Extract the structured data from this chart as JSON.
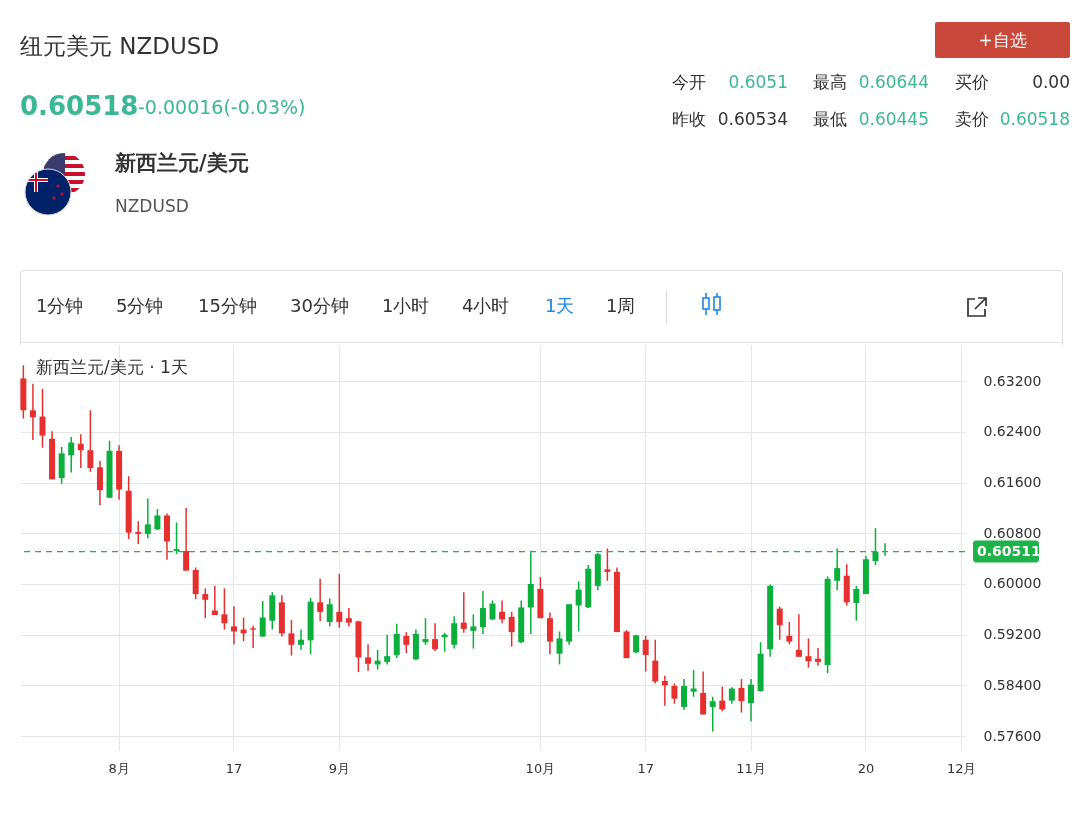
{
  "chart_data": {
    "type": "candlestick",
    "title": "新西兰元/美元 · 1天",
    "annotations": [
      "纽元美元 NZDUSD",
      "0.60518",
      "-0.00016(-0.03%)",
      "今开",
      "0.6051",
      "最高",
      "0.60644",
      "买价",
      "0.00",
      "昨收",
      "0.60534",
      "最低",
      "0.60445",
      "卖价",
      "0.60518",
      "+自选",
      "新西兰元/美元",
      "NZDUSD",
      "1分钟",
      "5分钟",
      "15分钟",
      "30分钟",
      "1小时",
      "4小时",
      "1天",
      "1周"
    ],
    "categories": [
      null,
      null,
      null,
      null,
      null,
      null,
      null,
      null,
      null,
      null,
      "8月",
      null,
      null,
      null,
      null,
      null,
      null,
      null,
      null,
      null,
      null,
      null,
      "17",
      null,
      null,
      null,
      null,
      null,
      null,
      null,
      null,
      null,
      null,
      "9月",
      null,
      null,
      null,
      null,
      null,
      null,
      null,
      null,
      null,
      null,
      null,
      null,
      null,
      null,
      null,
      null,
      null,
      null,
      null,
      null,
      "10月",
      null,
      null,
      null,
      null,
      null,
      null,
      null,
      null,
      null,
      null,
      "17",
      null,
      null,
      null,
      null,
      null,
      null,
      null,
      null,
      null,
      null,
      "11月",
      null,
      null,
      null,
      null,
      null,
      null,
      null,
      null,
      null,
      null,
      null,
      "20",
      null,
      null,
      null,
      null,
      null,
      null,
      null,
      null,
      null,
      "12月"
    ],
    "ohlc": [
      [
        0.6324,
        0.6345,
        0.6261,
        0.6274
      ],
      [
        0.6274,
        0.6316,
        0.6227,
        0.6263
      ],
      [
        0.6264,
        0.6308,
        0.6215,
        0.6234
      ],
      [
        0.6229,
        0.6241,
        0.6165,
        0.6165
      ],
      [
        0.6167,
        0.6216,
        0.6158,
        0.6206
      ],
      [
        0.6203,
        0.6232,
        0.6176,
        0.6223
      ],
      [
        0.6221,
        0.6236,
        0.6183,
        0.6211
      ],
      [
        0.6211,
        0.6274,
        0.6177,
        0.6183
      ],
      [
        0.6184,
        0.6194,
        0.6124,
        0.6148
      ],
      [
        0.6136,
        0.6226,
        0.6136,
        0.621
      ],
      [
        0.621,
        0.6219,
        0.6133,
        0.6149
      ],
      [
        0.6147,
        0.617,
        0.6071,
        0.6081
      ],
      [
        0.6082,
        0.6099,
        0.6063,
        0.6079
      ],
      [
        0.6079,
        0.6135,
        0.6072,
        0.6094
      ],
      [
        0.6086,
        0.6118,
        0.6085,
        0.6108
      ],
      [
        0.6108,
        0.6111,
        0.6038,
        0.6067
      ],
      [
        0.6052,
        0.6097,
        0.6047,
        0.6055
      ],
      [
        0.6052,
        0.612,
        0.6021,
        0.6021
      ],
      [
        0.6022,
        0.6026,
        0.5976,
        0.5984
      ],
      [
        0.5984,
        0.5993,
        0.5946,
        0.5975
      ],
      [
        0.5958,
        0.5997,
        0.5951,
        0.5951
      ],
      [
        0.5952,
        0.5993,
        0.5928,
        0.5938
      ],
      [
        0.5933,
        0.5965,
        0.5905,
        0.5925
      ],
      [
        0.5928,
        0.5947,
        0.591,
        0.5922
      ],
      [
        0.593,
        0.5934,
        0.5899,
        0.5928
      ],
      [
        0.5917,
        0.5973,
        0.5917,
        0.5947
      ],
      [
        0.5942,
        0.5987,
        0.5928,
        0.5982
      ],
      [
        0.5971,
        0.5982,
        0.5917,
        0.5922
      ],
      [
        0.5922,
        0.5943,
        0.5887,
        0.5904
      ],
      [
        0.5904,
        0.5928,
        0.5896,
        0.5912
      ],
      [
        0.5911,
        0.5978,
        0.5889,
        0.5972
      ],
      [
        0.5971,
        0.6008,
        0.5941,
        0.5956
      ],
      [
        0.594,
        0.5977,
        0.5933,
        0.5968
      ],
      [
        0.5956,
        0.6016,
        0.5931,
        0.594
      ],
      [
        0.5946,
        0.5962,
        0.5933,
        0.5939
      ],
      [
        0.5941,
        0.5942,
        0.5861,
        0.5884
      ],
      [
        0.5884,
        0.5905,
        0.5863,
        0.5874
      ],
      [
        0.5873,
        0.5896,
        0.5865,
        0.5879
      ],
      [
        0.5877,
        0.592,
        0.5873,
        0.5886
      ],
      [
        0.5888,
        0.5937,
        0.5883,
        0.5921
      ],
      [
        0.5918,
        0.5924,
        0.5891,
        0.5904
      ],
      [
        0.5881,
        0.5928,
        0.588,
        0.5921
      ],
      [
        0.5908,
        0.5946,
        0.5904,
        0.5913
      ],
      [
        0.5913,
        0.5938,
        0.5894,
        0.5897
      ],
      [
        0.5916,
        0.5923,
        0.5893,
        0.592
      ],
      [
        0.5904,
        0.5949,
        0.5898,
        0.5938
      ],
      [
        0.5939,
        0.5987,
        0.5923,
        0.5929
      ],
      [
        0.5926,
        0.5952,
        0.5898,
        0.5933
      ],
      [
        0.5932,
        0.5989,
        0.5921,
        0.5962
      ],
      [
        0.5944,
        0.5974,
        0.5943,
        0.5969
      ],
      [
        0.5956,
        0.5974,
        0.5938,
        0.5944
      ],
      [
        0.5948,
        0.5956,
        0.5901,
        0.5924
      ],
      [
        0.5908,
        0.5974,
        0.5907,
        0.5963
      ],
      [
        0.5963,
        0.605,
        0.5921,
        0.6
      ],
      [
        0.5992,
        0.6011,
        0.5946,
        0.5946
      ],
      [
        0.5946,
        0.5955,
        0.5889,
        0.5909
      ],
      [
        0.589,
        0.5925,
        0.5873,
        0.5914
      ],
      [
        0.5909,
        0.5968,
        0.5904,
        0.5968
      ],
      [
        0.5966,
        0.6004,
        0.5925,
        0.5991
      ],
      [
        0.5963,
        0.603,
        0.5962,
        0.6024
      ],
      [
        0.5997,
        0.6049,
        0.599,
        0.6047
      ],
      [
        0.6023,
        0.6056,
        0.6005,
        0.6019
      ],
      [
        0.6019,
        0.6026,
        0.5924,
        0.5924
      ],
      [
        0.5925,
        0.5927,
        0.5883,
        0.5883
      ],
      [
        0.5892,
        0.592,
        0.5891,
        0.5919
      ],
      [
        0.5912,
        0.5918,
        0.5862,
        0.5888
      ],
      [
        0.5879,
        0.5912,
        0.5843,
        0.5846
      ],
      [
        0.5847,
        0.5855,
        0.5808,
        0.584
      ],
      [
        0.5839,
        0.5843,
        0.5811,
        0.5819
      ],
      [
        0.5806,
        0.585,
        0.5801,
        0.5839
      ],
      [
        0.583,
        0.5864,
        0.5822,
        0.5835
      ],
      [
        0.5828,
        0.5862,
        0.5794,
        0.5794
      ],
      [
        0.5806,
        0.5822,
        0.5767,
        0.5815
      ],
      [
        0.5816,
        0.5838,
        0.5799,
        0.5802
      ],
      [
        0.5816,
        0.5837,
        0.5811,
        0.5835
      ],
      [
        0.5836,
        0.585,
        0.5797,
        0.5815
      ],
      [
        0.5812,
        0.585,
        0.5783,
        0.5841
      ],
      [
        0.5831,
        0.5908,
        0.583,
        0.589
      ],
      [
        0.5897,
        0.5999,
        0.5885,
        0.5997
      ],
      [
        0.5961,
        0.5964,
        0.5912,
        0.5935
      ],
      [
        0.5918,
        0.594,
        0.5905,
        0.5909
      ],
      [
        0.5896,
        0.5952,
        0.5885,
        0.5885
      ],
      [
        0.5886,
        0.5914,
        0.5868,
        0.5878
      ],
      [
        0.5882,
        0.5899,
        0.5871,
        0.5877
      ],
      [
        0.5872,
        0.6012,
        0.5859,
        0.6008
      ],
      [
        0.6005,
        0.6056,
        0.599,
        0.6025
      ],
      [
        0.6013,
        0.6031,
        0.5966,
        0.5971
      ],
      [
        0.597,
        0.5997,
        0.5942,
        0.5992
      ],
      [
        0.5984,
        0.6044,
        0.5984,
        0.6039
      ],
      [
        0.6036,
        0.6088,
        0.603,
        0.6051
      ],
      [
        0.6051,
        0.60644,
        0.60445,
        0.60518
      ],
      null,
      null,
      null,
      null,
      null,
      null,
      null,
      null
    ],
    "colors": [
      "#e5302f",
      "#e5302f",
      "#e5302f",
      "#e5302f",
      "#0aaf3c",
      "#0aaf3c",
      "#e5302f",
      "#e5302f",
      "#e5302f",
      "#0aaf3c",
      "#e5302f",
      "#e5302f",
      "#e5302f",
      "#0aaf3c",
      "#0aaf3c",
      "#e5302f",
      "#0aaf3c",
      "#e5302f",
      "#e5302f",
      "#e5302f",
      "#e5302f",
      "#e5302f",
      "#e5302f",
      "#e5302f",
      "#e5302f",
      "#0aaf3c",
      "#0aaf3c",
      "#e5302f",
      "#e5302f",
      "#0aaf3c",
      "#0aaf3c",
      "#e5302f",
      "#0aaf3c",
      "#e5302f",
      "#e5302f",
      "#e5302f",
      "#e5302f",
      "#0aaf3c",
      "#0aaf3c",
      "#0aaf3c",
      "#e5302f",
      "#0aaf3c",
      "#0aaf3c",
      "#e5302f",
      "#0aaf3c",
      "#0aaf3c",
      "#e5302f",
      "#0aaf3c",
      "#0aaf3c",
      "#0aaf3c",
      "#e5302f",
      "#e5302f",
      "#0aaf3c",
      "#0aaf3c",
      "#e5302f",
      "#e5302f",
      "#0aaf3c",
      "#0aaf3c",
      "#0aaf3c",
      "#0aaf3c",
      "#0aaf3c",
      "#e5302f",
      "#e5302f",
      "#e5302f",
      "#0aaf3c",
      "#e5302f",
      "#e5302f",
      "#e5302f",
      "#e5302f",
      "#0aaf3c",
      "#0aaf3c",
      "#e5302f",
      "#0aaf3c",
      "#e5302f",
      "#0aaf3c",
      "#e5302f",
      "#0aaf3c",
      "#0aaf3c",
      "#0aaf3c",
      "#e5302f",
      "#e5302f",
      "#e5302f",
      "#e5302f",
      "#e5302f",
      "#0aaf3c",
      "#0aaf3c",
      "#e5302f",
      "#0aaf3c",
      "#0aaf3c",
      "#0aaf3c",
      "#0aaf3c",
      null,
      null,
      null,
      null,
      null,
      null,
      null,
      null
    ],
    "ylim": [
      0.5738,
      0.6377
    ],
    "yticks": [
      {
        "value": 0.576,
        "label": "0.57600"
      },
      {
        "value": 0.584,
        "label": "0.58400"
      },
      {
        "value": 0.592,
        "label": "0.59200"
      },
      {
        "value": 0.6,
        "label": "0.60000"
      },
      {
        "value": 0.608,
        "label": "0.60800"
      },
      {
        "value": 0.616,
        "label": "0.61600"
      },
      {
        "value": 0.624,
        "label": "0.62400"
      },
      {
        "value": 0.632,
        "label": "0.63200"
      }
    ],
    "grid": true,
    "ref_lines": [
      {
        "axis": "y",
        "value": 0.60511,
        "label": "0.60511",
        "color": "#1fb14a",
        "line_style": "dashed"
      }
    ]
  }
}
